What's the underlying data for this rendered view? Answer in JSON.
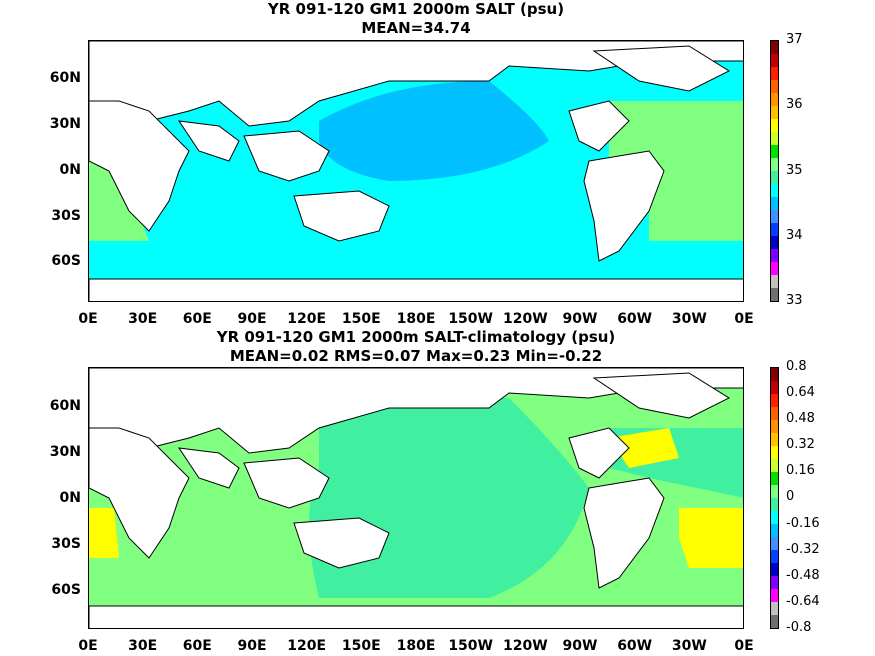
{
  "panels": [
    {
      "title_line1": "YR 091-120 GM1 2000m SALT (psu)",
      "title_line2": "MEAN=34.74",
      "colorbar_labels": [
        "37",
        "36",
        "35",
        "34",
        "33"
      ],
      "colorbar_colors": [
        "#7f0000",
        "#c00000",
        "#ff2000",
        "#ff6000",
        "#ff9000",
        "#ffc000",
        "#ffff00",
        "#c8ff30",
        "#00e000",
        "#80ff80",
        "#40f0a0",
        "#00ffff",
        "#00c0ff",
        "#4090ff",
        "#0040ff",
        "#0000c0",
        "#8000ff",
        "#ff00ff",
        "#c0c0c0",
        "#707070"
      ],
      "colors": {
        "ocean_main": "#00ffff",
        "pacific": "#00c0ff",
        "atlantic": "#80ff80",
        "southern": "#80ff80"
      }
    },
    {
      "title_line1": "YR 091-120 GM1 2000m SALT-climatology (psu)",
      "title_line2": "MEAN=0.02   RMS=0.07   Max=0.23   Min=-0.22",
      "colorbar_labels": [
        "0.8",
        "0.64",
        "0.48",
        "0.32",
        "0.16",
        "0",
        "-0.16",
        "-0.32",
        "-0.48",
        "-0.64",
        "-0.8"
      ],
      "colorbar_colors": [
        "#7f0000",
        "#c00000",
        "#ff2000",
        "#ff6000",
        "#ff9000",
        "#ffc000",
        "#ffff00",
        "#c8ff30",
        "#00e000",
        "#80ff80",
        "#40f0a0",
        "#00ffff",
        "#00c0ff",
        "#4090ff",
        "#0040ff",
        "#0000c0",
        "#8000ff",
        "#ff00ff",
        "#c0c0c0",
        "#707070"
      ],
      "colors": {
        "ocean_main": "#80ff80",
        "pacific": "#40f0a0",
        "atlantic": "#40f0a0",
        "yellow": "#ffff00"
      }
    }
  ],
  "lat_labels": [
    "60N",
    "30N",
    "0N",
    "30S",
    "60S"
  ],
  "lon_labels": [
    "0E",
    "30E",
    "60E",
    "90E",
    "120E",
    "150E",
    "180E",
    "150W",
    "120W",
    "90W",
    "60W",
    "30W",
    "0E"
  ]
}
